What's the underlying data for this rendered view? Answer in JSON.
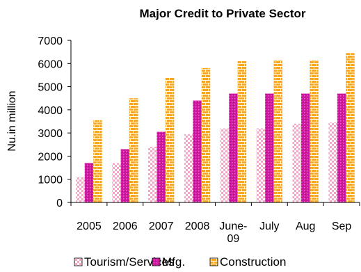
{
  "chart_data": {
    "type": "bar",
    "title": "Major Credit to Private Sector",
    "ylabel": "Nu.in million",
    "xlabel": "",
    "categories": [
      "2005",
      "2006",
      "2007",
      "2008",
      "June-09",
      "July",
      "Aug",
      "Sep"
    ],
    "category_lines": [
      [
        "2005"
      ],
      [
        "2006"
      ],
      [
        "2007"
      ],
      [
        "2008"
      ],
      [
        "June-",
        "09"
      ],
      [
        "July"
      ],
      [
        "Aug"
      ],
      [
        "Sep"
      ]
    ],
    "ylim": [
      0,
      7000
    ],
    "yticks": [
      "0",
      "1000",
      "2000",
      "3000",
      "4000",
      "5000",
      "6000",
      "7000"
    ],
    "grid": false,
    "legend_position": "bottom",
    "series": [
      {
        "name": "Tourism/Services",
        "color": "#f4a6c6",
        "pattern": "checker",
        "values": [
          1100,
          1700,
          2400,
          2950,
          3200,
          3200,
          3400,
          3450
        ]
      },
      {
        "name": "Mfg.",
        "color": "#cc1a9e",
        "pattern": "dots",
        "values": [
          1700,
          2300,
          3050,
          4400,
          4700,
          4700,
          4700,
          4700
        ]
      },
      {
        "name": "Construction",
        "color": "#f5a623",
        "pattern": "brick",
        "values": [
          3550,
          4500,
          5400,
          5800,
          6100,
          6150,
          6150,
          6450
        ]
      }
    ]
  }
}
